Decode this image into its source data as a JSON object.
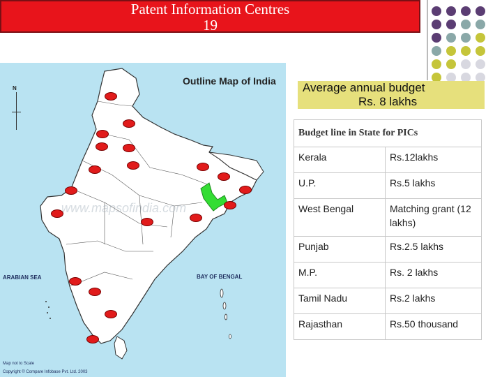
{
  "title": {
    "line1": "Patent Information Centres",
    "line2": "19"
  },
  "map": {
    "title": "Outline Map of India",
    "north": "N",
    "arabian_sea": "ARABIAN SEA",
    "bay_of_bengal": "BAY OF BENGAL",
    "scale_note": "Map not to Scale",
    "copyright": "Copyright © Compare Infobase Pvt. Ltd. 2003",
    "watermark": "www.mapsofindia.com"
  },
  "budget": {
    "line1": "Average annual budget",
    "line2": "Rs. 8 lakhs"
  },
  "table": {
    "caption": "Budget line in State for PICs",
    "rows": [
      {
        "state": "Kerala",
        "budget": "Rs.12lakhs"
      },
      {
        "state": "U.P.",
        "budget": "Rs.5 lakhs"
      },
      {
        "state": "West Bengal",
        "budget": "Matching grant (12 lakhs)"
      },
      {
        "state": "Punjab",
        "budget": "Rs.2.5 lakhs"
      },
      {
        "state": "M.P.",
        "budget": "Rs. 2 lakhs"
      },
      {
        "state": "Tamil Nadu",
        "budget": "Rs.2 lakhs"
      },
      {
        "state": "Rajasthan",
        "budget": "Rs.50 thousand"
      }
    ]
  },
  "colors": {
    "title_bg": "#e8141b",
    "budget_bg": "#e6e07c",
    "map_sea": "#b9e3f2",
    "marker": "#e11b1b",
    "state_highlight": "#33dd33"
  }
}
